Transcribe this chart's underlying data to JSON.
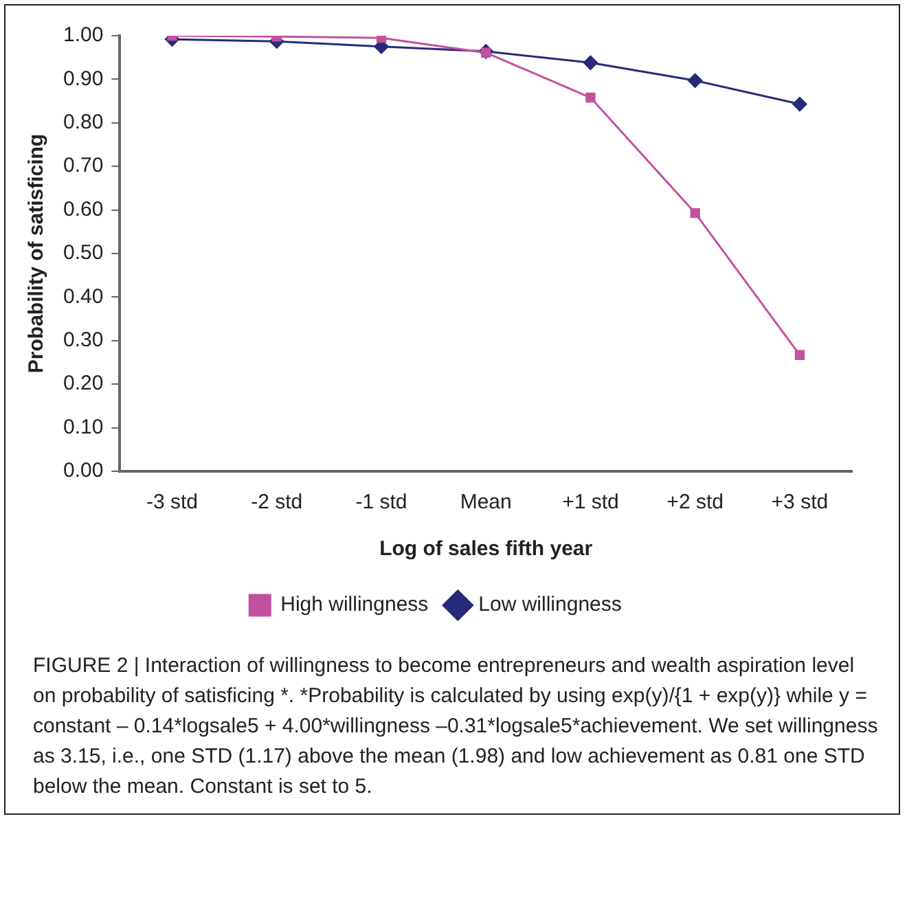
{
  "chart_data": {
    "type": "line",
    "xlabel": "Log of sales fifth year",
    "ylabel": "Probability of satisficing",
    "categories": [
      "-3 std",
      "-2 std",
      "-1 std",
      "Mean",
      "+1 std",
      "+2 std",
      "+3 std"
    ],
    "series": [
      {
        "name": "Low willingness",
        "color": "#262a78",
        "marker": "diamond",
        "values": [
          0.992,
          0.987,
          0.975,
          0.964,
          0.938,
          0.897,
          0.843
        ]
      },
      {
        "name": "High willingness",
        "color": "#c3519f",
        "marker": "square",
        "values": [
          1.0,
          0.998,
          0.995,
          0.961,
          0.858,
          0.593,
          0.267
        ]
      }
    ],
    "ylim": [
      0,
      1
    ],
    "yticks": [
      {
        "value": 0,
        "label": "0.00"
      },
      {
        "value": 0.1,
        "label": "0.10"
      },
      {
        "value": 0.2,
        "label": "0.20"
      },
      {
        "value": 0.3,
        "label": "0.30"
      },
      {
        "value": 0.4,
        "label": "0.40"
      },
      {
        "value": 0.5,
        "label": "0.50"
      },
      {
        "value": 0.6,
        "label": "0.60"
      },
      {
        "value": 0.7,
        "label": "0.70"
      },
      {
        "value": 0.8,
        "label": "0.80"
      },
      {
        "value": 0.9,
        "label": "0.90"
      },
      {
        "value": 1,
        "label": "1.00"
      }
    ],
    "grid": false,
    "legend": "bottom",
    "line_style": "solid",
    "annotations": [
      "FIGURE 2 | Interaction of willingness to become entrepreneurs and wealth aspiration level on probability of satisficing *. *Probability is calculated by using exp(y)/{1 + exp(y)} while y = constant – 0.14*logsale5 + 4.00*willingness –0.31*logsale5*achievement. We set willingness as 3.15, i.e., one STD (1.17) above the mean (1.98) and low achievement as 0.81 one STD below the mean. Constant is set to 5."
    ]
  }
}
